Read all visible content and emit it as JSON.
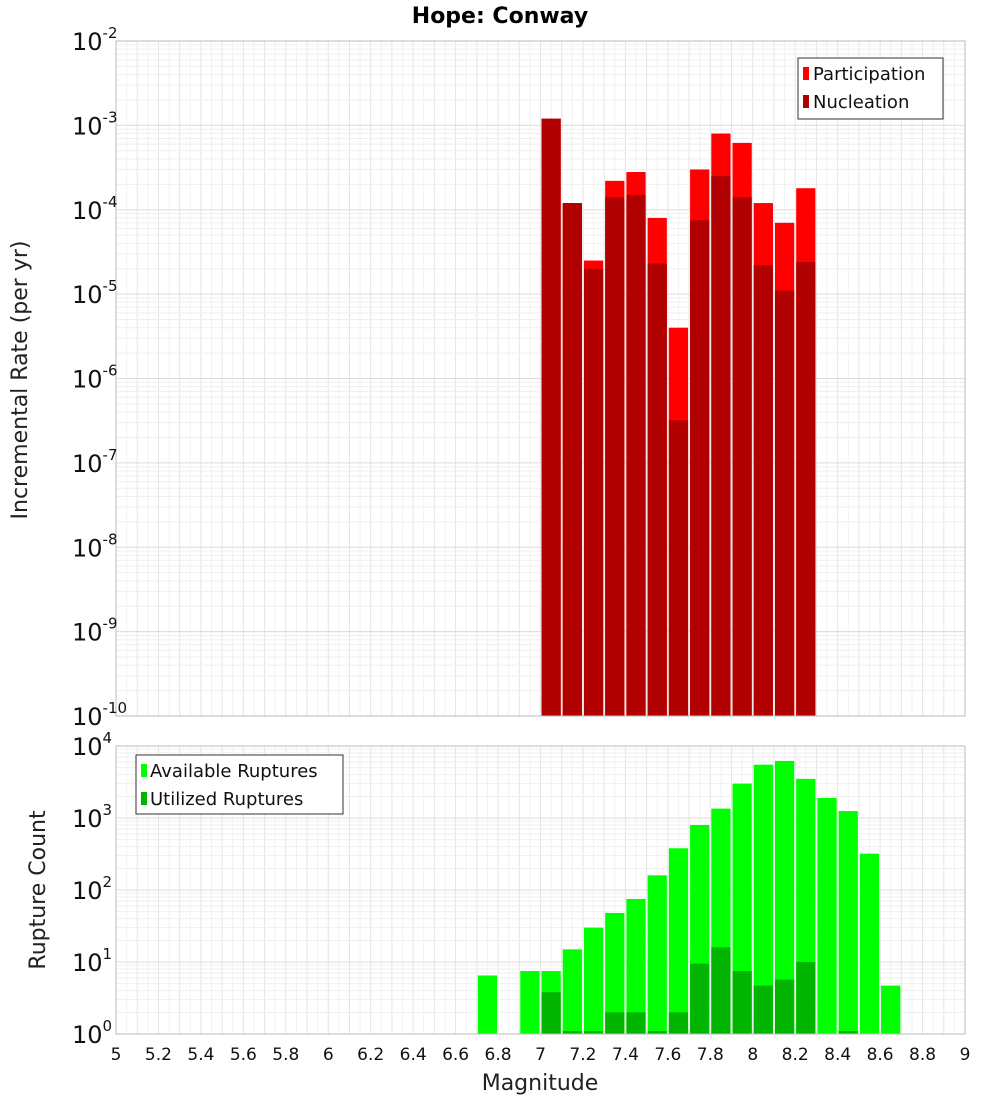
{
  "chart_data": [
    {
      "type": "bar",
      "title": "Hope: Conway",
      "xlabel": "",
      "ylabel": "Incremental Rate (per yr)",
      "y_scale": "log",
      "ylim": [
        1e-10,
        0.01
      ],
      "xlim": [
        5,
        9
      ],
      "bar_width": 0.1,
      "grid": true,
      "legend_position": "top-right",
      "x": [
        7.05,
        7.15,
        7.25,
        7.35,
        7.45,
        7.55,
        7.65,
        7.75,
        7.85,
        7.95,
        8.05,
        8.15,
        8.25
      ],
      "series": [
        {
          "name": "Participation",
          "color": "#ff0000",
          "values": [
            0.0012,
            0.00012,
            2.5e-05,
            0.00022,
            0.00028,
            8e-05,
            4e-06,
            0.0003,
            0.0008,
            0.00062,
            0.00012,
            7e-05,
            0.00018
          ]
        },
        {
          "name": "Nucleation",
          "color": "#b00000",
          "values": [
            0.0012,
            0.00012,
            2e-05,
            0.00014,
            0.00015,
            2.3e-05,
            3.2e-07,
            7.5e-05,
            0.00025,
            0.00014,
            2.2e-05,
            1.1e-05,
            2.4e-05
          ]
        }
      ]
    },
    {
      "type": "bar",
      "title": "",
      "xlabel": "Magnitude",
      "ylabel": "Rupture Count",
      "y_scale": "log",
      "ylim": [
        1,
        10000
      ],
      "xlim": [
        5,
        9
      ],
      "bar_width": 0.1,
      "grid": true,
      "legend_position": "top-left",
      "x_ticks": [
        "5",
        "5.2",
        "5.4",
        "5.6",
        "5.8",
        "6",
        "6.2",
        "6.4",
        "6.6",
        "6.8",
        "7",
        "7.2",
        "7.4",
        "7.6",
        "7.8",
        "8",
        "8.2",
        "8.4",
        "8.6",
        "8.8",
        "9"
      ],
      "x": [
        6.75,
        6.95,
        7.05,
        7.15,
        7.25,
        7.35,
        7.45,
        7.55,
        7.65,
        7.75,
        7.85,
        7.95,
        8.05,
        8.15,
        8.25,
        8.35,
        8.45,
        8.55,
        8.65
      ],
      "series": [
        {
          "name": "Available Ruptures",
          "color": "#00ff00",
          "values": [
            6.5,
            7.5,
            7.5,
            15,
            30,
            48,
            75,
            160,
            380,
            800,
            1350,
            3000,
            5500,
            6200,
            3500,
            1900,
            1250,
            320,
            4.7
          ]
        },
        {
          "name": "Utilized Ruptures",
          "color": "#00b400",
          "values": [
            0,
            0,
            3.8,
            1.1,
            1.1,
            2,
            2,
            1.1,
            2,
            9.5,
            16,
            7.5,
            4.7,
            5.7,
            10,
            0,
            1.1,
            0,
            0
          ]
        }
      ]
    }
  ],
  "y_tick_bases": {
    "top": [
      "10",
      "10",
      "10",
      "10",
      "10",
      "10",
      "10",
      "10",
      "10"
    ],
    "bottom": [
      "10",
      "10",
      "10",
      "10",
      "10"
    ]
  },
  "y_tick_exponents": {
    "top": [
      "-2",
      "-3",
      "-4",
      "-5",
      "-6",
      "-7",
      "-8",
      "-9",
      "-10"
    ],
    "bottom": [
      "4",
      "3",
      "2",
      "1",
      "0"
    ]
  }
}
